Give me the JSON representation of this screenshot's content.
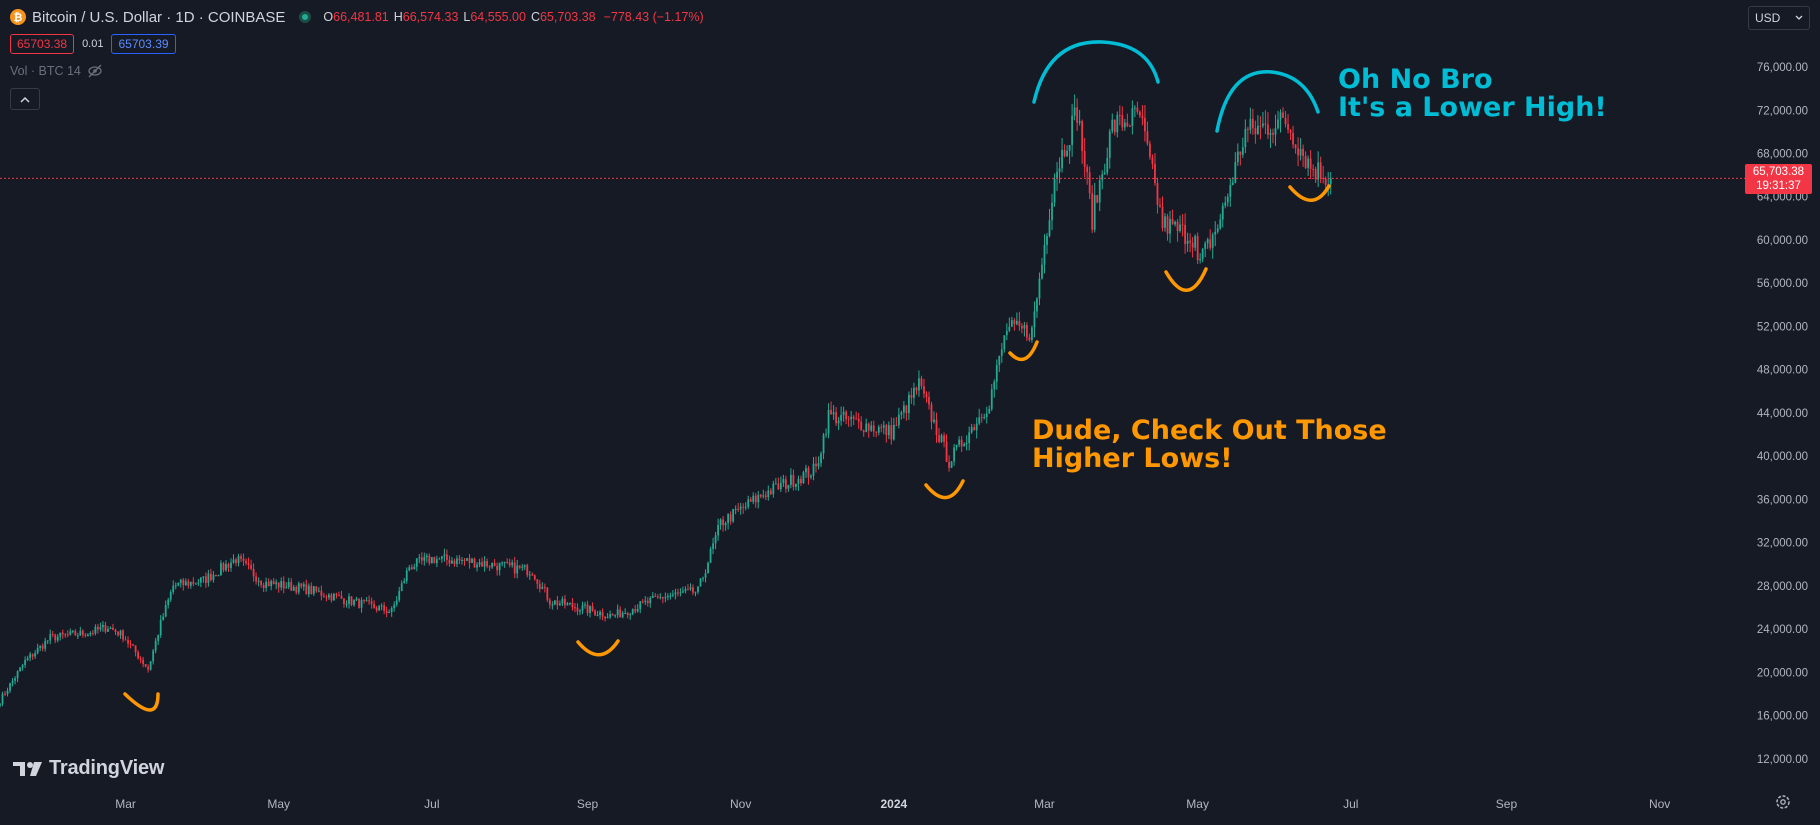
{
  "header": {
    "symbol_icon": "bitcoin-icon",
    "title": "Bitcoin / U.S. Dollar · 1D · COINBASE",
    "ohlc": [
      {
        "key": "O",
        "value": "66,481.81"
      },
      {
        "key": "H",
        "value": "66,574.33"
      },
      {
        "key": "L",
        "value": "64,555.00"
      },
      {
        "key": "C",
        "value": "65,703.38"
      }
    ],
    "change": "−778.43 (−1.17%)",
    "sell_price": "65703.38",
    "spread": "0.01",
    "buy_price": "65703.39",
    "volume_label": "Vol · BTC 14",
    "collapse_icon": "chevron-up-icon",
    "currency_button": "USD"
  },
  "price_tag": {
    "price": "65,703.38",
    "countdown": "19:31:37"
  },
  "brand": "TradingView",
  "colors": {
    "background": "#161a25",
    "up": "#22ab94",
    "down": "#f23645",
    "annotation_orange": "#ff9800",
    "annotation_cyan": "#00bcd4",
    "last_price_line": "#f23645"
  },
  "chart_data": {
    "type": "candlestick",
    "y_axis": {
      "ticks": [
        12000,
        16000,
        20000,
        24000,
        28000,
        32000,
        36000,
        40000,
        44000,
        48000,
        52000,
        56000,
        60000,
        64000,
        68000,
        72000,
        76000
      ],
      "tick_labels": [
        "12,000.00",
        "16,000.00",
        "20,000.00",
        "24,000.00",
        "28,000.00",
        "32,000.00",
        "36,000.00",
        "40,000.00",
        "44,000.00",
        "48,000.00",
        "52,000.00",
        "56,000.00",
        "60,000.00",
        "64,000.00",
        "68,000.00",
        "72,000.00",
        "76,000.00"
      ],
      "ylim": [
        10500,
        78500
      ]
    },
    "x_axis": {
      "range": [
        "2023-01-10",
        "2024-12-05"
      ],
      "ticks": [
        {
          "date": "2023-03-01",
          "label": "Mar"
        },
        {
          "date": "2023-05-01",
          "label": "May"
        },
        {
          "date": "2023-07-01",
          "label": "Jul"
        },
        {
          "date": "2023-09-01",
          "label": "Sep"
        },
        {
          "date": "2023-11-01",
          "label": "Nov"
        },
        {
          "date": "2024-01-01",
          "label": "2024"
        },
        {
          "date": "2024-03-01",
          "label": "Mar"
        },
        {
          "date": "2024-05-01",
          "label": "May"
        },
        {
          "date": "2024-07-01",
          "label": "Jul"
        },
        {
          "date": "2024-09-01",
          "label": "Sep"
        },
        {
          "date": "2024-11-01",
          "label": "Nov"
        }
      ]
    },
    "price_path": [
      {
        "date": "2023-01-10",
        "price": 17400
      },
      {
        "date": "2023-01-20",
        "price": 21000
      },
      {
        "date": "2023-01-30",
        "price": 23200
      },
      {
        "date": "2023-02-15",
        "price": 23700
      },
      {
        "date": "2023-02-22",
        "price": 24200
      },
      {
        "date": "2023-02-28",
        "price": 23400
      },
      {
        "date": "2023-03-10",
        "price": 20300
      },
      {
        "date": "2023-03-15",
        "price": 24500
      },
      {
        "date": "2023-03-20",
        "price": 28000
      },
      {
        "date": "2023-04-01",
        "price": 28500
      },
      {
        "date": "2023-04-14",
        "price": 30500
      },
      {
        "date": "2023-04-25",
        "price": 28300
      },
      {
        "date": "2023-05-10",
        "price": 27800
      },
      {
        "date": "2023-06-15",
        "price": 25600
      },
      {
        "date": "2023-06-22",
        "price": 29800
      },
      {
        "date": "2023-07-01",
        "price": 30500
      },
      {
        "date": "2023-07-15",
        "price": 30300
      },
      {
        "date": "2023-08-10",
        "price": 29400
      },
      {
        "date": "2023-08-17",
        "price": 26600
      },
      {
        "date": "2023-09-01",
        "price": 25800
      },
      {
        "date": "2023-09-11",
        "price": 25200
      },
      {
        "date": "2023-10-01",
        "price": 27000
      },
      {
        "date": "2023-10-15",
        "price": 27500
      },
      {
        "date": "2023-10-24",
        "price": 33800
      },
      {
        "date": "2023-11-10",
        "price": 36500
      },
      {
        "date": "2023-12-01",
        "price": 38800
      },
      {
        "date": "2023-12-06",
        "price": 43800
      },
      {
        "date": "2023-12-31",
        "price": 42200
      },
      {
        "date": "2024-01-11",
        "price": 46600
      },
      {
        "date": "2024-01-23",
        "price": 39500
      },
      {
        "date": "2024-02-08",
        "price": 45000
      },
      {
        "date": "2024-02-15",
        "price": 51800
      },
      {
        "date": "2024-02-25",
        "price": 51500
      },
      {
        "date": "2024-03-05",
        "price": 66000
      },
      {
        "date": "2024-03-14",
        "price": 72000
      },
      {
        "date": "2024-03-20",
        "price": 62000
      },
      {
        "date": "2024-03-28",
        "price": 70500
      },
      {
        "date": "2024-04-08",
        "price": 71500
      },
      {
        "date": "2024-04-17",
        "price": 61500
      },
      {
        "date": "2024-04-30",
        "price": 60200
      },
      {
        "date": "2024-05-01",
        "price": 57500
      },
      {
        "date": "2024-05-10",
        "price": 61800
      },
      {
        "date": "2024-05-20",
        "price": 70000
      },
      {
        "date": "2024-06-05",
        "price": 71000
      },
      {
        "date": "2024-06-15",
        "price": 66800
      },
      {
        "date": "2024-06-23",
        "price": 65700
      }
    ],
    "last_price": 65703.38,
    "annotations": [
      {
        "name": "higher-lows-text",
        "lines": [
          "Dude, Check Out Those",
          "Higher Lows!"
        ],
        "color": "#ff9800"
      },
      {
        "name": "lower-high-text",
        "lines": [
          "Oh No Bro",
          "It's a Lower High!"
        ],
        "color": "#00bcd4"
      }
    ],
    "grid": false
  }
}
